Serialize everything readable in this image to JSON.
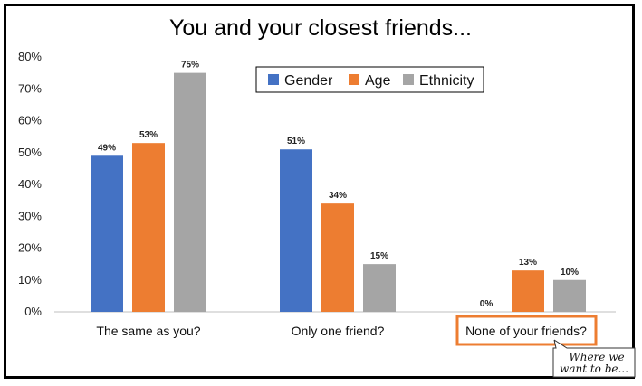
{
  "chart_data": {
    "type": "bar",
    "title": "You and your closest friends...",
    "categories": [
      "The same as you?",
      "Only one friend?",
      "None of your friends?"
    ],
    "series": [
      {
        "name": "Gender",
        "color": "#4472C4",
        "values": [
          49,
          51,
          0
        ]
      },
      {
        "name": "Age",
        "color": "#ED7D31",
        "values": [
          53,
          34,
          13
        ]
      },
      {
        "name": "Ethnicity",
        "color": "#A5A5A5",
        "values": [
          75,
          15,
          10
        ]
      }
    ],
    "data_labels": [
      [
        "49%",
        "51%",
        "0%"
      ],
      [
        "53%",
        "34%",
        "13%"
      ],
      [
        "75%",
        "15%",
        "10%"
      ]
    ],
    "ylim": [
      0,
      80
    ],
    "yticks": [
      0,
      10,
      20,
      30,
      40,
      50,
      60,
      70,
      80
    ],
    "ytick_labels": [
      "0%",
      "10%",
      "20%",
      "30%",
      "40%",
      "50%",
      "60%",
      "70%",
      "80%"
    ],
    "legend_position": "top-right",
    "grid": false,
    "highlight": {
      "category": "None of your friends?",
      "color": "#ED7D31"
    },
    "annotation": {
      "line1": "Where we",
      "line2": "want to be..."
    }
  }
}
